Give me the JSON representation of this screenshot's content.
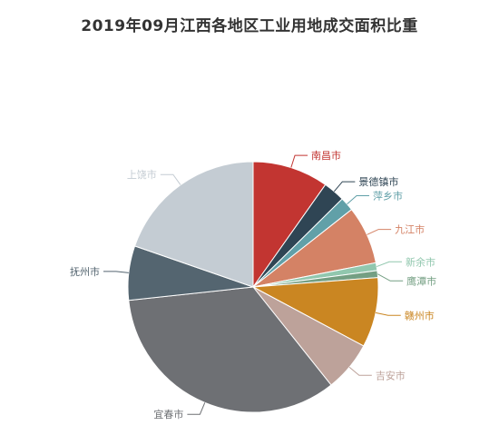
{
  "chart_data": {
    "type": "pie",
    "title": "2019年09月江西各地区工业用地成交面积比重",
    "slices": [
      {
        "label": "南昌市",
        "value": 9.8,
        "color": "#c23531"
      },
      {
        "label": "景德镇市",
        "value": 2.8,
        "color": "#2f4554"
      },
      {
        "label": "萍乡市",
        "value": 1.8,
        "color": "#61a0a8"
      },
      {
        "label": "九江市",
        "value": 7.5,
        "color": "#d48265"
      },
      {
        "label": "新余市",
        "value": 1.0,
        "color": "#91c7ae"
      },
      {
        "label": "鹰潭市",
        "value": 0.9,
        "color": "#749f83"
      },
      {
        "label": "赣州市",
        "value": 9.0,
        "color": "#ca8622"
      },
      {
        "label": "吉安市",
        "value": 6.5,
        "color": "#bda29a"
      },
      {
        "label": "宜春市",
        "value": 34.0,
        "color": "#6e7074"
      },
      {
        "label": "抚州市",
        "value": 7.0,
        "color": "#546570"
      },
      {
        "label": "上饶市",
        "value": 19.7,
        "color": "#c4ccd3"
      }
    ]
  }
}
